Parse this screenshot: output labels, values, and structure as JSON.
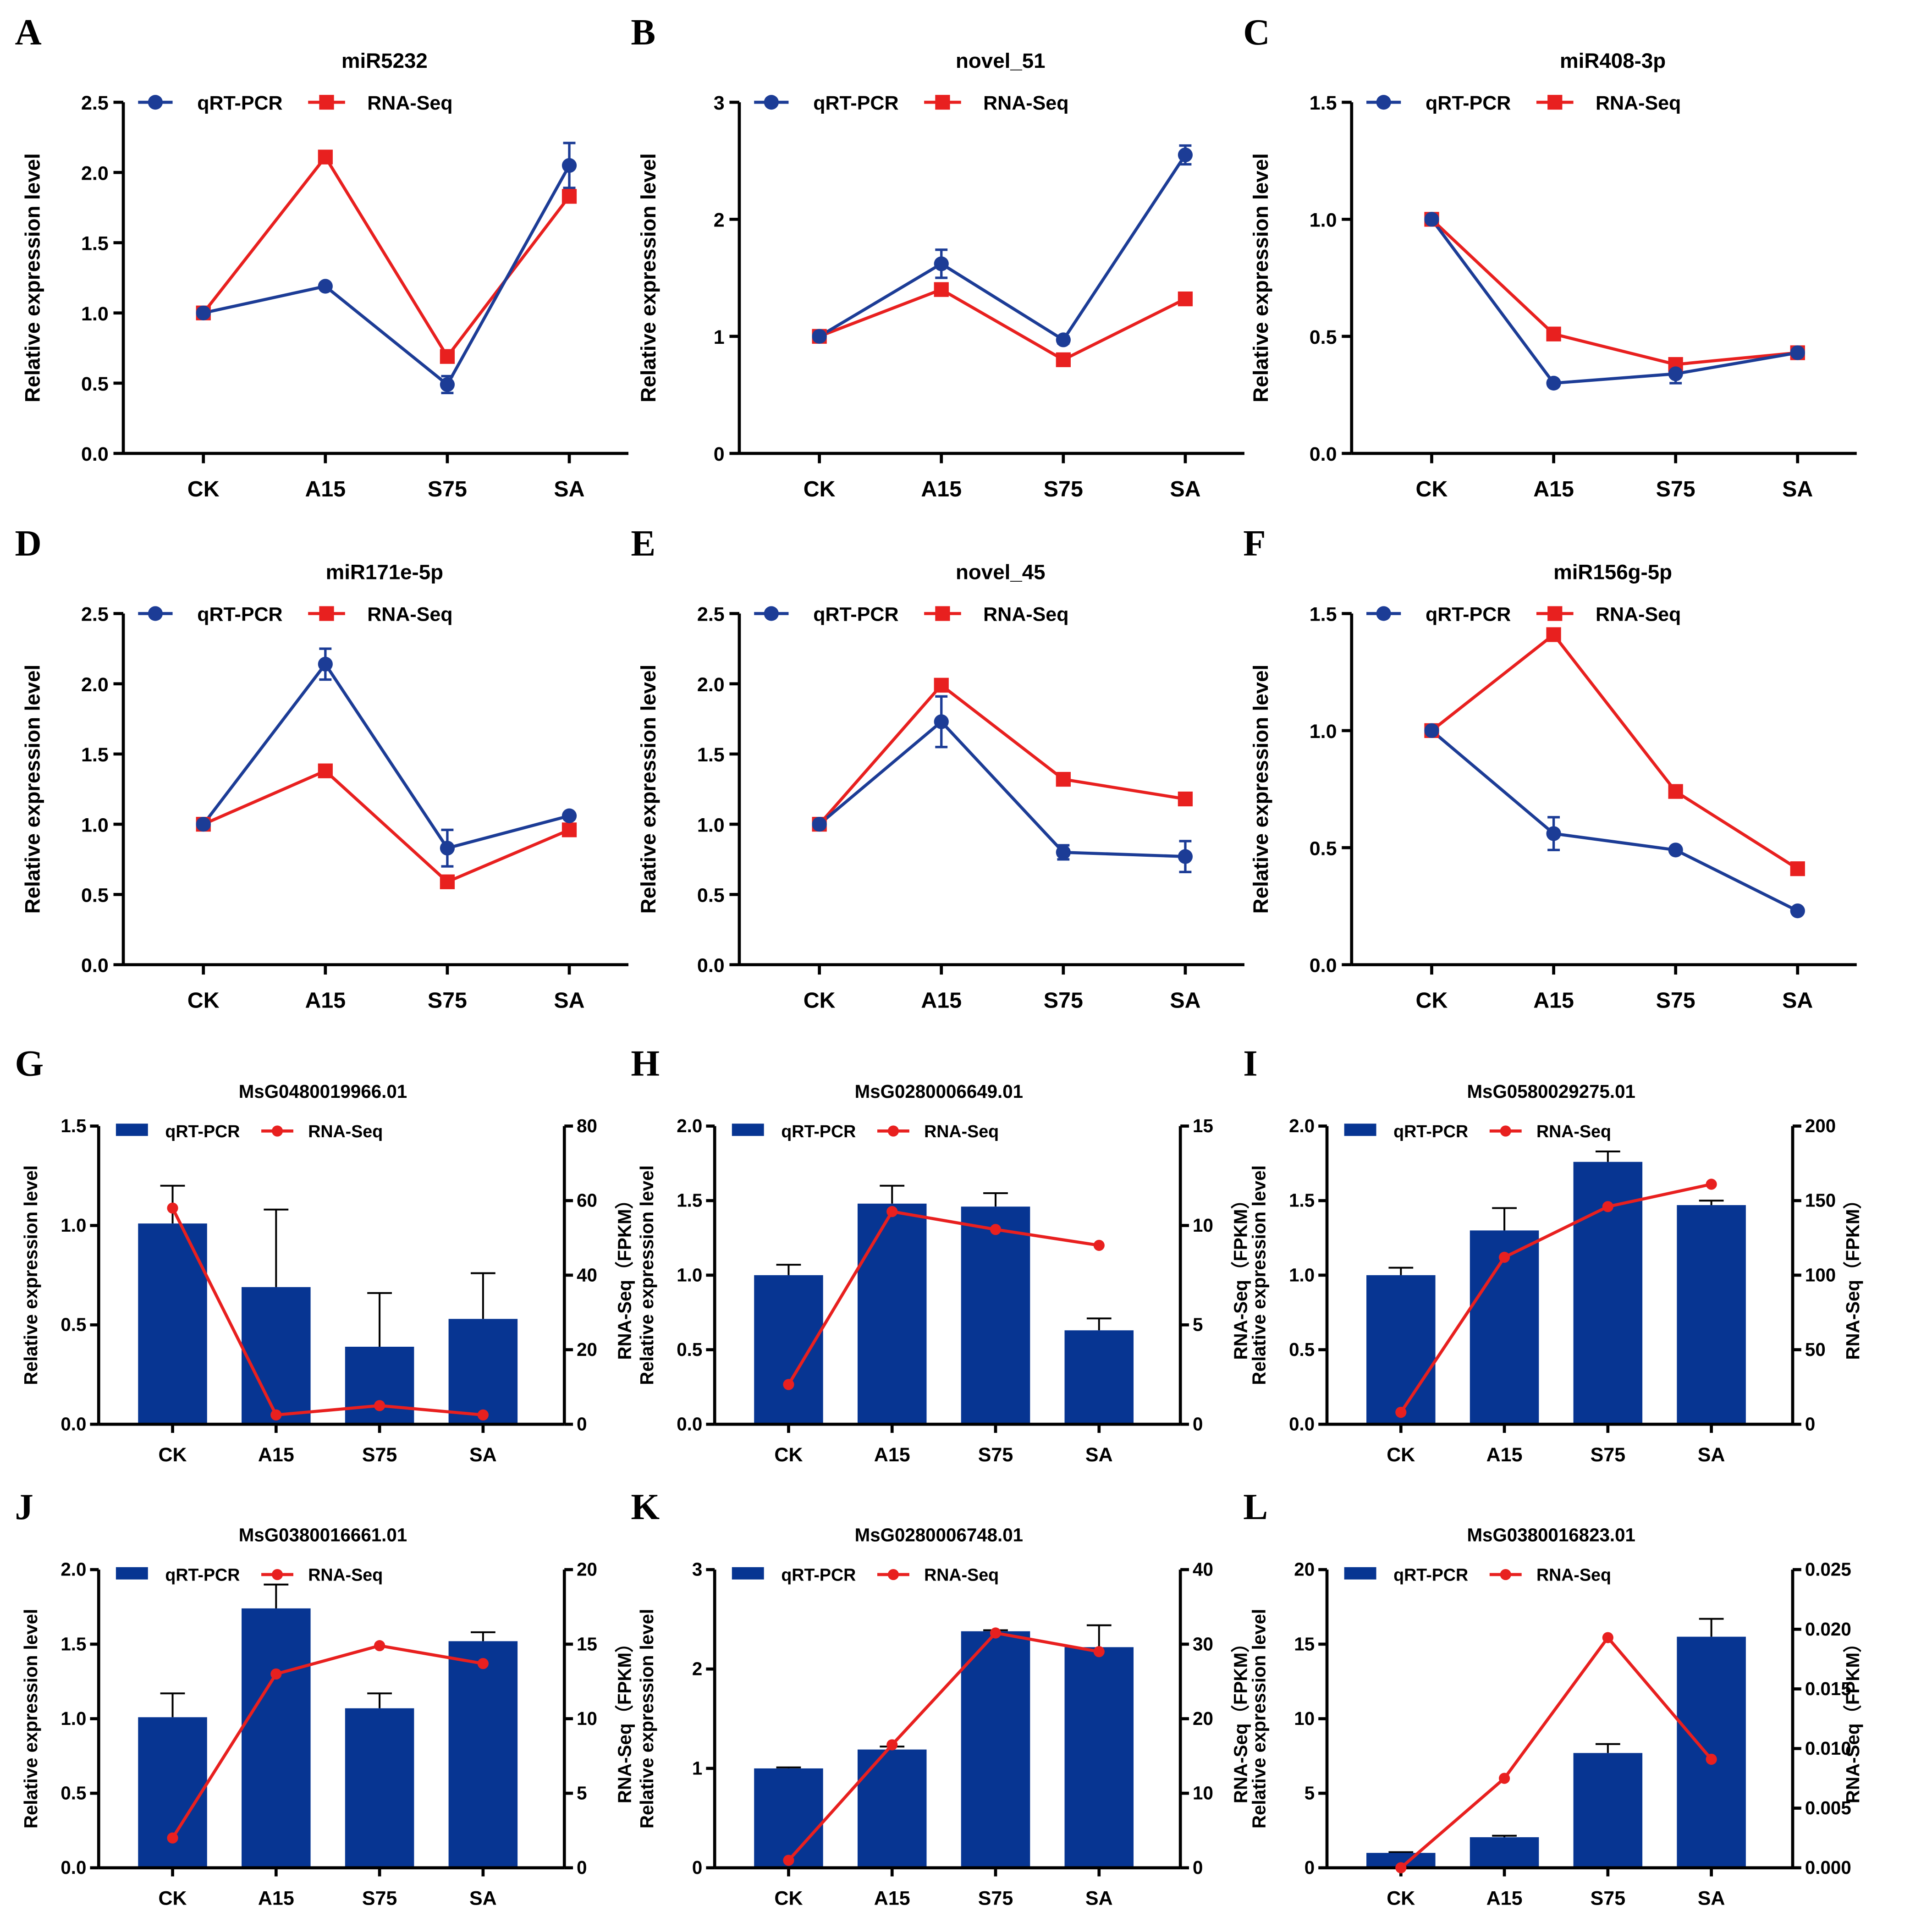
{
  "colors": {
    "qrt_line": "#1c3c96",
    "rna_line": "#e8201f",
    "bar": "#073592"
  },
  "chart_data": [
    {
      "panel": "A",
      "type": "line",
      "title": "miR5232",
      "ylabel": "Relative expression level",
      "categories": [
        "CK",
        "A15",
        "S75",
        "SA"
      ],
      "ylim": [
        0,
        2.5
      ],
      "yticks": [
        "0.0",
        "0.5",
        "1.0",
        "1.5",
        "2.0",
        "2.5"
      ],
      "series": [
        {
          "name": "qRT-PCR",
          "values": [
            1.0,
            1.19,
            0.49,
            2.05
          ],
          "error": [
            0.02,
            0.02,
            0.06,
            0.16
          ]
        },
        {
          "name": "RNA-Seq",
          "values": [
            1.0,
            2.11,
            0.69,
            1.83
          ]
        }
      ]
    },
    {
      "panel": "B",
      "type": "line",
      "title": "novel_51",
      "ylabel": "Relative expression level",
      "categories": [
        "CK",
        "A15",
        "S75",
        "SA"
      ],
      "ylim": [
        0,
        3
      ],
      "yticks": [
        "0",
        "1",
        "2",
        "3"
      ],
      "series": [
        {
          "name": "qRT-PCR",
          "values": [
            1.0,
            1.62,
            0.97,
            2.55
          ],
          "error": [
            0.03,
            0.12,
            0.03,
            0.08
          ]
        },
        {
          "name": "RNA-Seq",
          "values": [
            1.0,
            1.4,
            0.8,
            1.32
          ]
        }
      ]
    },
    {
      "panel": "C",
      "type": "line",
      "title": "miR408-3p",
      "ylabel": "Relative expression level",
      "categories": [
        "CK",
        "A15",
        "S75",
        "SA"
      ],
      "ylim": [
        0,
        1.5
      ],
      "yticks": [
        "0.0",
        "0.5",
        "1.0",
        "1.5"
      ],
      "series": [
        {
          "name": "qRT-PCR",
          "values": [
            1.0,
            0.3,
            0.34,
            0.43
          ],
          "error": [
            0.02,
            0.01,
            0.04,
            0.02
          ]
        },
        {
          "name": "RNA-Seq",
          "values": [
            1.0,
            0.51,
            0.38,
            0.43
          ]
        }
      ]
    },
    {
      "panel": "D",
      "type": "line",
      "title": "miR171e-5p",
      "ylabel": "Relative expression level",
      "categories": [
        "CK",
        "A15",
        "S75",
        "SA"
      ],
      "ylim": [
        0,
        2.5
      ],
      "yticks": [
        "0.0",
        "0.5",
        "1.0",
        "1.5",
        "2.0",
        "2.5"
      ],
      "series": [
        {
          "name": "qRT-PCR",
          "values": [
            1.0,
            2.14,
            0.83,
            1.06
          ],
          "error": [
            0.02,
            0.11,
            0.13,
            0.02
          ]
        },
        {
          "name": "RNA-Seq",
          "values": [
            1.0,
            1.38,
            0.59,
            0.96
          ]
        }
      ]
    },
    {
      "panel": "E",
      "type": "line",
      "title": "novel_45",
      "ylabel": "Relative expression level",
      "categories": [
        "CK",
        "A15",
        "S75",
        "SA"
      ],
      "ylim": [
        0,
        2.5
      ],
      "yticks": [
        "0.0",
        "0.5",
        "1.0",
        "1.5",
        "2.0",
        "2.5"
      ],
      "series": [
        {
          "name": "qRT-PCR",
          "values": [
            1.0,
            1.73,
            0.8,
            0.77
          ],
          "error": [
            0.02,
            0.18,
            0.05,
            0.11
          ]
        },
        {
          "name": "RNA-Seq",
          "values": [
            1.0,
            1.99,
            1.32,
            1.18
          ]
        }
      ]
    },
    {
      "panel": "F",
      "type": "line",
      "title": "miR156g-5p",
      "ylabel": "Relative expression level",
      "categories": [
        "CK",
        "A15",
        "S75",
        "SA"
      ],
      "ylim": [
        0,
        1.5
      ],
      "yticks": [
        "0.0",
        "0.5",
        "1.0",
        "1.5"
      ],
      "series": [
        {
          "name": "qRT-PCR",
          "values": [
            1.0,
            0.56,
            0.49,
            0.23
          ],
          "error": [
            0.01,
            0.07,
            0.01,
            0.01
          ]
        },
        {
          "name": "RNA-Seq",
          "values": [
            1.0,
            1.41,
            0.74,
            0.41
          ]
        }
      ]
    },
    {
      "panel": "G",
      "type": "bar",
      "title": "MsG0480019966.01",
      "ylabel": "Relative expression level",
      "y2label": "RNA-Seq（FPKM）",
      "categories": [
        "CK",
        "A15",
        "S75",
        "SA"
      ],
      "ylim": [
        0,
        1.5
      ],
      "yticks": [
        "0.0",
        "0.5",
        "1.0",
        "1.5"
      ],
      "y2lim": [
        0,
        80
      ],
      "y2ticks": [
        "0",
        "20",
        "40",
        "60",
        "80"
      ],
      "series": [
        {
          "name": "qRT-PCR",
          "values": [
            1.01,
            0.69,
            0.39,
            0.53
          ],
          "error": [
            0.19,
            0.39,
            0.27,
            0.23
          ]
        },
        {
          "name": "RNA-Seq",
          "axis": "right",
          "values": [
            58,
            2.5,
            5,
            2.5
          ]
        }
      ]
    },
    {
      "panel": "H",
      "type": "bar",
      "title": "MsG0280006649.01",
      "ylabel": "Relative expression level",
      "y2label": "RNA-Seq（FPKM）",
      "categories": [
        "CK",
        "A15",
        "S75",
        "SA"
      ],
      "ylim": [
        0,
        2.0
      ],
      "yticks": [
        "0.0",
        "0.5",
        "1.0",
        "1.5",
        "2.0"
      ],
      "y2lim": [
        0,
        15
      ],
      "y2ticks": [
        "0",
        "5",
        "10",
        "15"
      ],
      "series": [
        {
          "name": "qRT-PCR",
          "values": [
            1.0,
            1.48,
            1.46,
            0.63
          ],
          "error": [
            0.07,
            0.12,
            0.09,
            0.08
          ]
        },
        {
          "name": "RNA-Seq",
          "axis": "right",
          "values": [
            2.0,
            10.7,
            9.8,
            9.0
          ]
        }
      ]
    },
    {
      "panel": "I",
      "type": "bar",
      "title": "MsG0580029275.01",
      "ylabel": "Relative expression level",
      "y2label": "RNA-Seq（FPKM）",
      "categories": [
        "CK",
        "A15",
        "S75",
        "SA"
      ],
      "ylim": [
        0,
        2.0
      ],
      "yticks": [
        "0.0",
        "0.5",
        "1.0",
        "1.5",
        "2.0"
      ],
      "y2lim": [
        0,
        200
      ],
      "y2ticks": [
        "0",
        "50",
        "100",
        "150",
        "200"
      ],
      "series": [
        {
          "name": "qRT-PCR",
          "values": [
            1.0,
            1.3,
            1.76,
            1.47
          ],
          "error": [
            0.05,
            0.15,
            0.07,
            0.03
          ]
        },
        {
          "name": "RNA-Seq",
          "axis": "right",
          "values": [
            8,
            112,
            146,
            161
          ]
        }
      ]
    },
    {
      "panel": "J",
      "type": "bar",
      "title": "MsG0380016661.01",
      "ylabel": "Relative expression level",
      "y2label": "RNA-Seq（FPKM）",
      "categories": [
        "CK",
        "A15",
        "S75",
        "SA"
      ],
      "ylim": [
        0,
        2.0
      ],
      "yticks": [
        "0.0",
        "0.5",
        "1.0",
        "1.5",
        "2.0"
      ],
      "y2lim": [
        0,
        20
      ],
      "y2ticks": [
        "0",
        "5",
        "10",
        "15",
        "20"
      ],
      "series": [
        {
          "name": "qRT-PCR",
          "values": [
            1.01,
            1.74,
            1.07,
            1.52
          ],
          "error": [
            0.16,
            0.16,
            0.1,
            0.06
          ]
        },
        {
          "name": "RNA-Seq",
          "axis": "right",
          "values": [
            2,
            13,
            14.9,
            13.7
          ]
        }
      ]
    },
    {
      "panel": "K",
      "type": "bar",
      "title": "MsG0280006748.01",
      "ylabel": "Relative expression level",
      "y2label": "RNA-Seq（FPKM）",
      "categories": [
        "CK",
        "A15",
        "S75",
        "SA"
      ],
      "ylim": [
        0,
        3
      ],
      "yticks": [
        "0",
        "1",
        "2",
        "3"
      ],
      "y2lim": [
        0,
        40
      ],
      "y2ticks": [
        "0",
        "10",
        "20",
        "30",
        "40"
      ],
      "series": [
        {
          "name": "qRT-PCR",
          "values": [
            1.0,
            1.19,
            2.38,
            2.22
          ],
          "error": [
            0.01,
            0.03,
            0.01,
            0.22
          ]
        },
        {
          "name": "RNA-Seq",
          "axis": "right",
          "values": [
            1,
            16.5,
            31.5,
            29
          ]
        }
      ]
    },
    {
      "panel": "L",
      "type": "bar",
      "title": "MsG0380016823.01",
      "ylabel": "Relative expression level",
      "y2label": "RNA-Seq（FPKM）",
      "categories": [
        "CK",
        "A15",
        "S75",
        "SA"
      ],
      "ylim": [
        0,
        20
      ],
      "yticks": [
        "0",
        "5",
        "10",
        "15",
        "20"
      ],
      "y2lim": [
        0,
        0.025
      ],
      "y2ticks": [
        "0.000",
        "0.005",
        "0.010",
        "0.015",
        "0.020",
        "0.025"
      ],
      "series": [
        {
          "name": "qRT-PCR",
          "values": [
            1,
            2.05,
            7.7,
            15.5
          ],
          "error": [
            0.05,
            0.1,
            0.6,
            1.2
          ]
        },
        {
          "name": "RNA-Seq",
          "axis": "right",
          "values": [
            0,
            0.0075,
            0.0193,
            0.0091
          ]
        }
      ]
    }
  ]
}
